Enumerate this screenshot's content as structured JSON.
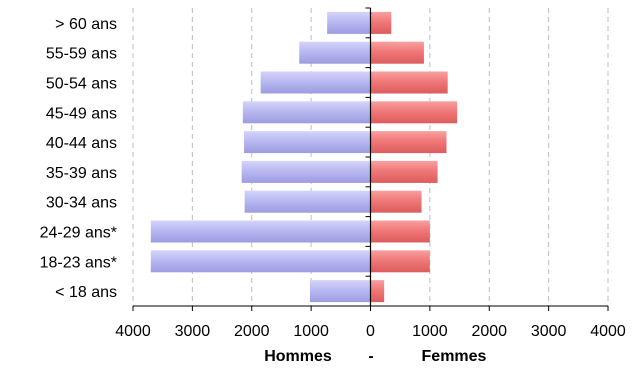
{
  "chart_data": {
    "type": "bar",
    "orientation": "horizontal",
    "layout": "population-pyramid",
    "categories": [
      "> 60 ans",
      "55-59 ans",
      "50-54 ans",
      "45-49 ans",
      "40-44 ans",
      "35-39 ans",
      "30-34 ans",
      "24-29 ans*",
      "18-23 ans*",
      "< 18 ans"
    ],
    "series": [
      {
        "name": "Hommes",
        "side": "left",
        "color": "#b3b3f0",
        "values": [
          730,
          1200,
          1850,
          2150,
          2130,
          2170,
          2120,
          3700,
          3700,
          1020
        ]
      },
      {
        "name": "Femmes",
        "side": "right",
        "color": "#f07878",
        "values": [
          350,
          900,
          1300,
          1460,
          1280,
          1130,
          860,
          1000,
          1000,
          230
        ]
      }
    ],
    "xlim": [
      -4000,
      4000
    ],
    "x_ticks": [
      -4000,
      -3000,
      -2000,
      -1000,
      0,
      1000,
      2000,
      3000,
      4000
    ],
    "x_tick_labels": [
      "4000",
      "3000",
      "2000",
      "1000",
      "0",
      "1000",
      "2000",
      "3000",
      "4000"
    ],
    "xlabel_left": "Hommes",
    "xlabel_sep": "-",
    "xlabel_right": "Femmes",
    "grid": "vertical-dashed",
    "legend": "none"
  }
}
